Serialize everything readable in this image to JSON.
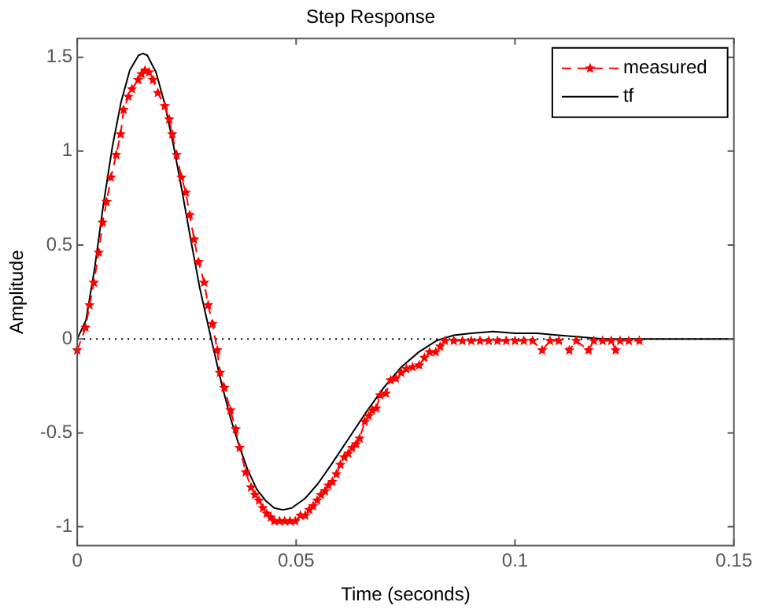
{
  "chart_data": {
    "type": "line",
    "title": "Step Response",
    "xlabel": "Time (seconds)",
    "ylabel": "Amplitude",
    "xlim": [
      0,
      0.15
    ],
    "xticks": [
      0,
      0.05,
      0.1,
      0.15
    ],
    "ylim": [
      -1.1,
      1.6
    ],
    "yticks": [
      -1,
      -0.5,
      0,
      0.5,
      1,
      1.5
    ],
    "grid": false,
    "legend": "top right",
    "ref_lines": [
      {
        "axis": "y",
        "value": 0,
        "color": "#000000",
        "line_style": "dotted"
      }
    ],
    "series": [
      {
        "name": "measured",
        "color": "#ff0000",
        "marker": "star",
        "line_style": "dashed",
        "x": [
          0,
          0.0019,
          0.0028,
          0.0038,
          0.0049,
          0.0058,
          0.0067,
          0.0077,
          0.0089,
          0.0099,
          0.0106,
          0.0117,
          0.0125,
          0.0139,
          0.0147,
          0.0155,
          0.0164,
          0.0173,
          0.0184,
          0.02,
          0.021,
          0.0217,
          0.0227,
          0.0238,
          0.0248,
          0.0257,
          0.0267,
          0.0277,
          0.029,
          0.0299,
          0.0309,
          0.032,
          0.0326,
          0.0336,
          0.035,
          0.0362,
          0.0371,
          0.0385,
          0.0397,
          0.0406,
          0.0415,
          0.0424,
          0.0433,
          0.0442,
          0.045,
          0.0462,
          0.0474,
          0.0486,
          0.0498,
          0.051,
          0.0521,
          0.053,
          0.0539,
          0.0548,
          0.0557,
          0.0566,
          0.0574,
          0.0583,
          0.0592,
          0.0601,
          0.061,
          0.0619,
          0.0628,
          0.0637,
          0.0645,
          0.0657,
          0.0666,
          0.0674,
          0.0683,
          0.0692,
          0.0705,
          0.0716,
          0.0728,
          0.074,
          0.0752,
          0.0766,
          0.0781,
          0.0793,
          0.0805,
          0.0819,
          0.0829,
          0.084,
          0.086,
          0.088,
          0.09,
          0.092,
          0.094,
          0.096,
          0.098,
          0.1,
          0.102,
          0.104,
          0.1062,
          0.108,
          0.11,
          0.1124,
          0.114,
          0.1168,
          0.118,
          0.12,
          0.122,
          0.123,
          0.124,
          0.126,
          0.1284
        ],
        "values": [
          -0.06,
          0.06,
          0.18,
          0.3,
          0.46,
          0.62,
          0.73,
          0.86,
          0.98,
          1.09,
          1.22,
          1.29,
          1.33,
          1.38,
          1.41,
          1.43,
          1.42,
          1.38,
          1.31,
          1.24,
          1.17,
          1.09,
          0.98,
          0.86,
          0.78,
          0.66,
          0.53,
          0.41,
          0.3,
          0.18,
          0.08,
          -0.06,
          -0.18,
          -0.26,
          -0.38,
          -0.48,
          -0.58,
          -0.71,
          -0.79,
          -0.83,
          -0.86,
          -0.9,
          -0.93,
          -0.95,
          -0.97,
          -0.97,
          -0.97,
          -0.97,
          -0.97,
          -0.94,
          -0.94,
          -0.91,
          -0.89,
          -0.86,
          -0.83,
          -0.81,
          -0.78,
          -0.76,
          -0.72,
          -0.67,
          -0.63,
          -0.61,
          -0.58,
          -0.56,
          -0.53,
          -0.44,
          -0.41,
          -0.38,
          -0.37,
          -0.3,
          -0.29,
          -0.22,
          -0.21,
          -0.18,
          -0.16,
          -0.15,
          -0.14,
          -0.1,
          -0.07,
          -0.07,
          -0.04,
          -0.01,
          -0.01,
          -0.01,
          -0.01,
          -0.01,
          -0.01,
          -0.01,
          -0.01,
          -0.01,
          -0.01,
          -0.01,
          -0.06,
          -0.01,
          -0.01,
          -0.06,
          -0.01,
          -0.06,
          -0.01,
          -0.01,
          -0.01,
          -0.06,
          -0.01,
          -0.01,
          -0.01
        ]
      },
      {
        "name": "tf",
        "color": "#000000",
        "marker": "none",
        "line_style": "solid",
        "x": [
          0,
          0.002,
          0.004,
          0.006,
          0.008,
          0.01,
          0.012,
          0.014,
          0.015,
          0.016,
          0.018,
          0.02,
          0.022,
          0.024,
          0.026,
          0.028,
          0.0306,
          0.033,
          0.035,
          0.037,
          0.039,
          0.041,
          0.043,
          0.045,
          0.047,
          0.049,
          0.052,
          0.055,
          0.058,
          0.062,
          0.066,
          0.07,
          0.074,
          0.078,
          0.082,
          0.086,
          0.09,
          0.095,
          0.1,
          0.105,
          0.11,
          0.115,
          0.12,
          0.13,
          0.14,
          0.15
        ],
        "values": [
          0,
          0.1,
          0.38,
          0.72,
          1.02,
          1.26,
          1.43,
          1.51,
          1.52,
          1.51,
          1.42,
          1.25,
          1.03,
          0.78,
          0.52,
          0.27,
          0,
          -0.24,
          -0.42,
          -0.57,
          -0.7,
          -0.8,
          -0.86,
          -0.9,
          -0.91,
          -0.9,
          -0.85,
          -0.77,
          -0.67,
          -0.53,
          -0.39,
          -0.26,
          -0.15,
          -0.07,
          -0.01,
          0.02,
          0.03,
          0.04,
          0.03,
          0.03,
          0.02,
          0.01,
          0,
          0,
          0,
          0
        ]
      }
    ]
  }
}
